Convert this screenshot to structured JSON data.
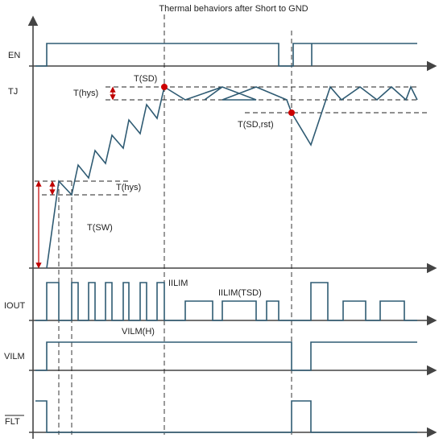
{
  "title": "Thermal behaviors after Short to GND",
  "signals": {
    "en": "EN",
    "tj": "TJ",
    "iout": "IOUT",
    "vilm": "VILM",
    "flt": "FLT"
  },
  "annotations": {
    "t_sd": "T(SD)",
    "t_hys_top": "T(hys)",
    "t_sd_rst": "T(SD,rst)",
    "t_hys_bottom": "T(hys)",
    "t_sw": "T(SW)",
    "iilim": "IILIM",
    "iilim_tsd": "IILIM(TSD)",
    "vilm_h": "VILM(H)"
  },
  "colors": {
    "signal": "#2f5b73",
    "axis": "#444444",
    "marker": "#cc0000",
    "arrow": "#c00000"
  }
}
